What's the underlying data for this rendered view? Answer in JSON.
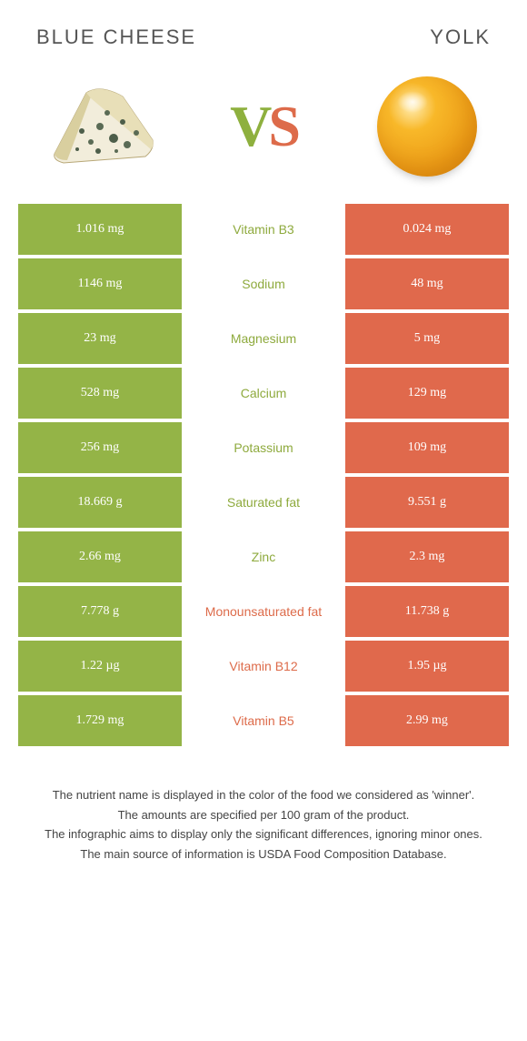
{
  "header": {
    "left_title": "BLUE CHEESE",
    "right_title": "YOLK"
  },
  "vs": {
    "v": "V",
    "s": "S"
  },
  "colors": {
    "left_bg": "#94b447",
    "right_bg": "#e0694c",
    "left_text": "#8eaa3d",
    "right_text": "#dd6b4a"
  },
  "rows": [
    {
      "left": "1.016 mg",
      "mid": "Vitamin B3",
      "right": "0.024 mg",
      "winner": "left"
    },
    {
      "left": "1146 mg",
      "mid": "Sodium",
      "right": "48 mg",
      "winner": "left"
    },
    {
      "left": "23 mg",
      "mid": "Magnesium",
      "right": "5 mg",
      "winner": "left"
    },
    {
      "left": "528 mg",
      "mid": "Calcium",
      "right": "129 mg",
      "winner": "left"
    },
    {
      "left": "256 mg",
      "mid": "Potassium",
      "right": "109 mg",
      "winner": "left"
    },
    {
      "left": "18.669 g",
      "mid": "Saturated fat",
      "right": "9.551 g",
      "winner": "left"
    },
    {
      "left": "2.66 mg",
      "mid": "Zinc",
      "right": "2.3 mg",
      "winner": "left"
    },
    {
      "left": "7.778 g",
      "mid": "Monounsaturated fat",
      "right": "11.738 g",
      "winner": "right"
    },
    {
      "left": "1.22 µg",
      "mid": "Vitamin B12",
      "right": "1.95 µg",
      "winner": "right"
    },
    {
      "left": "1.729 mg",
      "mid": "Vitamin B5",
      "right": "2.99 mg",
      "winner": "right"
    }
  ],
  "footer": {
    "line1": "The nutrient name is displayed in the color of the food we considered as 'winner'.",
    "line2": "The amounts are specified per 100 gram of the product.",
    "line3": "The infographic aims to display only the significant differences, ignoring minor ones.",
    "line4": "The main source of information is USDA Food Composition Database."
  }
}
